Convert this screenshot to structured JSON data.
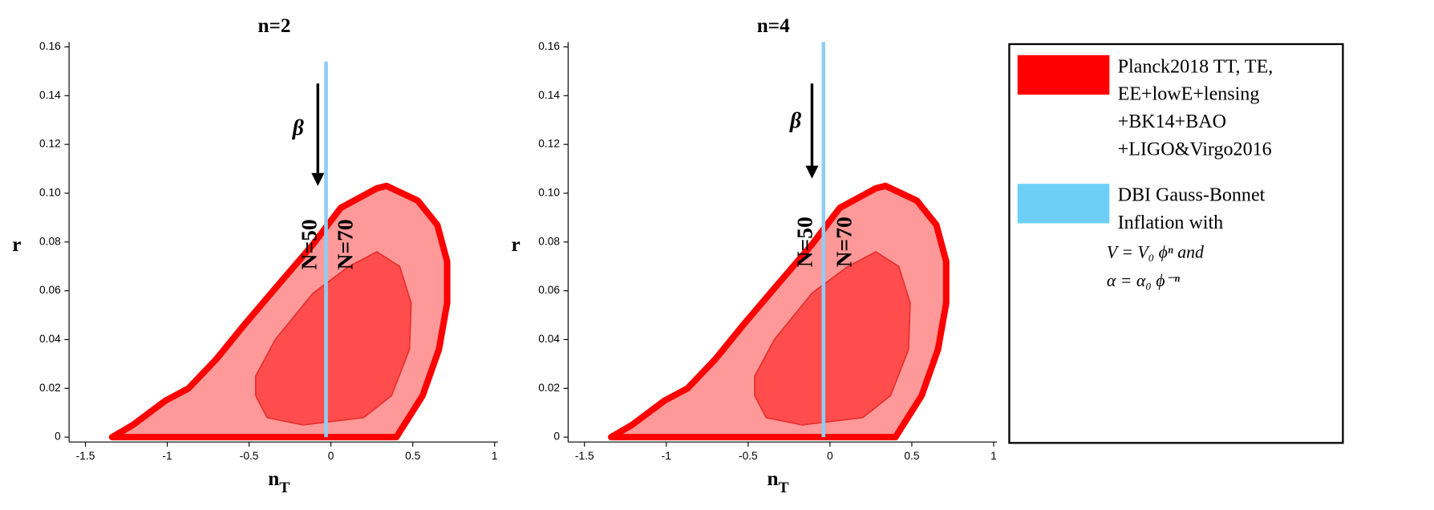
{
  "chart_data": [
    {
      "type": "contour",
      "title": "n=2",
      "xlabel": "n",
      "xlabel_sub": "T",
      "ylabel": "r",
      "xlim": [
        -1.6,
        1.02
      ],
      "ylim": [
        -0.002,
        0.162
      ],
      "xticks": [
        -1.5,
        -1,
        -0.5,
        0,
        0.5,
        1
      ],
      "yticks": [
        0,
        0.02,
        0.04,
        0.06,
        0.08,
        {
          "value": 0.1,
          "label": "0.10"
        },
        0.12,
        0.14,
        0.16
      ],
      "series": [
        {
          "kind": "region",
          "color": "#ff9999",
          "edge": "#ff0000",
          "x": [
            -1.337,
            -1.21,
            -1.01,
            -0.87,
            -0.7,
            -0.53,
            -0.34,
            -0.11,
            0.06,
            0.28,
            0.34,
            0.53,
            0.65,
            0.71,
            0.71,
            0.66,
            0.56,
            0.4
          ],
          "y": [
            0,
            0.005,
            0.015,
            0.02,
            0.032,
            0.046,
            0.061,
            0.079,
            0.094,
            0.102,
            0.103,
            0.097,
            0.087,
            0.072,
            0.055,
            0.036,
            0.017,
            0
          ]
        },
        {
          "kind": "region",
          "color": "#ff4d4d",
          "edge": "#e83030",
          "x": [
            -0.46,
            -0.46,
            -0.34,
            -0.11,
            0.11,
            0.28,
            0.42,
            0.49,
            0.48,
            0.37,
            0.2,
            -0.17,
            -0.39
          ],
          "y": [
            0.017,
            0.025,
            0.04,
            0.059,
            0.07,
            0.076,
            0.07,
            0.055,
            0.036,
            0.017,
            0.008,
            0.005,
            0.008
          ]
        },
        {
          "kind": "line",
          "color": "#8fcdf5",
          "x": [
            -0.03,
            -0.03
          ],
          "y": [
            0,
            0.154
          ]
        }
      ],
      "arrows": [
        {
          "x": [
            -0.08,
            -0.08
          ],
          "y": [
            0.145,
            0.103
          ]
        }
      ],
      "annotations": [
        {
          "text": "β",
          "x": -0.2,
          "y": 0.126,
          "italic": true
        },
        {
          "text": "N=50",
          "x": -0.12,
          "y": 0.079,
          "vertical": true
        },
        {
          "text": "N=70",
          "x": 0.1,
          "y": 0.079,
          "vertical": true
        }
      ]
    },
    {
      "type": "contour",
      "title": "n=4",
      "xlabel": "n",
      "xlabel_sub": "T",
      "ylabel": "r",
      "xlim": [
        -1.6,
        1.02
      ],
      "ylim": [
        -0.002,
        0.162
      ],
      "xticks": [
        -1.5,
        -1,
        -0.5,
        0,
        0.5,
        1
      ],
      "yticks": [
        0,
        0.02,
        0.04,
        0.06,
        0.08,
        {
          "value": 0.1,
          "label": "0.10"
        },
        0.12,
        0.14,
        0.16
      ],
      "series": [
        {
          "kind": "region",
          "color": "#ff9999",
          "edge": "#ff0000",
          "x": [
            -1.337,
            -1.21,
            -1.01,
            -0.87,
            -0.7,
            -0.53,
            -0.34,
            -0.11,
            0.06,
            0.28,
            0.34,
            0.53,
            0.65,
            0.71,
            0.71,
            0.66,
            0.56,
            0.4
          ],
          "y": [
            0,
            0.005,
            0.015,
            0.02,
            0.032,
            0.046,
            0.061,
            0.079,
            0.094,
            0.102,
            0.103,
            0.097,
            0.087,
            0.072,
            0.055,
            0.036,
            0.017,
            0
          ]
        },
        {
          "kind": "region",
          "color": "#ff4d4d",
          "edge": "#e83030",
          "x": [
            -0.46,
            -0.46,
            -0.34,
            -0.11,
            0.11,
            0.28,
            0.42,
            0.49,
            0.48,
            0.37,
            0.2,
            -0.17,
            -0.39
          ],
          "y": [
            0.017,
            0.025,
            0.04,
            0.059,
            0.07,
            0.076,
            0.07,
            0.055,
            0.036,
            0.017,
            0.008,
            0.005,
            0.008
          ]
        },
        {
          "kind": "line",
          "color": "#8fcdf5",
          "x": [
            -0.04,
            -0.04
          ],
          "y": [
            0,
            0.162
          ]
        }
      ],
      "arrows": [
        {
          "x": [
            -0.11,
            -0.11
          ],
          "y": [
            0.145,
            0.106
          ]
        }
      ],
      "annotations": [
        {
          "text": "β",
          "x": -0.21,
          "y": 0.129,
          "italic": true
        },
        {
          "text": "N=50",
          "x": -0.14,
          "y": 0.08,
          "vertical": true
        },
        {
          "text": "N=70",
          "x": 0.1,
          "y": 0.08,
          "vertical": true
        }
      ]
    }
  ],
  "legend": {
    "entries": [
      {
        "color": "#ff0000",
        "lines": [
          "Planck2018 TT, TE,",
          "EE+lowE+lensing",
          "+BK14+BAO",
          "+LIGO&Virgo2016"
        ]
      },
      {
        "color": "#6dcff6",
        "lines": [
          "DBI Gauss-Bonnet",
          "Inflation with"
        ],
        "formulas": [
          "V = V₀ ϕⁿ  and",
          "α = α₀ ϕ⁻ⁿ"
        ]
      }
    ]
  }
}
